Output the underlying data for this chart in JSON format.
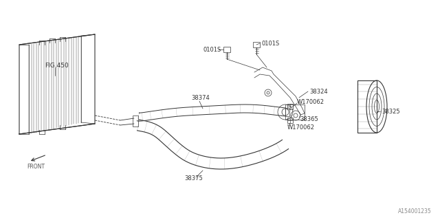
{
  "bg_color": "#ffffff",
  "line_color": "#333333",
  "fig_size": [
    6.4,
    3.2
  ],
  "dpi": 100,
  "watermark": "A154001235",
  "labels": {
    "fig450": "FIG.450",
    "part_38324": "38324",
    "part_38325": "38325",
    "part_38365": "38365",
    "part_38374": "38374",
    "part_38375": "38375",
    "part_w170062a": "W170062",
    "part_w170062b": "W170062",
    "part_0101s_a": "0101S",
    "part_0101s_b": "0101S",
    "front_label": "FRONT"
  }
}
